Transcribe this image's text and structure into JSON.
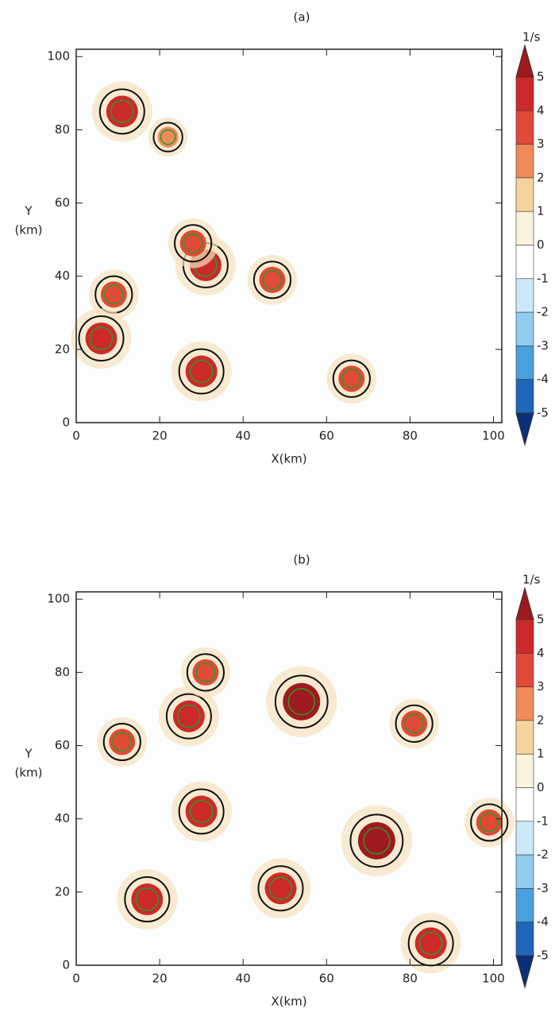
{
  "chart_data": [
    {
      "type": "heatmap",
      "title": "(a)",
      "x_label": "X(km)",
      "y_label": [
        "Y",
        "(km)"
      ],
      "xlim": [
        0,
        102
      ],
      "ylim": [
        0,
        102
      ],
      "xticks": [
        0,
        20,
        40,
        60,
        80,
        100
      ],
      "yticks": [
        0,
        20,
        40,
        60,
        80,
        100
      ],
      "colorbar": {
        "label": "1/s",
        "levels": [
          5,
          4,
          3,
          2,
          1,
          0,
          -1,
          -2,
          -3,
          -4,
          -5
        ],
        "colors": [
          "#9e1a1e",
          "#cc2a2a",
          "#e04a36",
          "#ef8a5a",
          "#f7d49e",
          "#fdf3dc",
          "#ffffff",
          "#cde8f8",
          "#92cdf0",
          "#4aa0dd",
          "#1e66b8",
          "#0b2f78"
        ]
      },
      "cores": {
        "x": [
          11,
          31,
          9,
          6,
          30,
          66,
          47,
          28,
          22
        ],
        "y": [
          85,
          43,
          35,
          23,
          14,
          12,
          39,
          49,
          78
        ],
        "values": [
          4,
          4,
          3,
          4,
          4,
          3,
          3,
          3,
          2
        ]
      }
    },
    {
      "type": "heatmap",
      "title": "(b)",
      "x_label": "X(km)",
      "y_label": [
        "Y",
        "(km)"
      ],
      "xlim": [
        0,
        102
      ],
      "ylim": [
        0,
        102
      ],
      "xticks": [
        0,
        20,
        40,
        60,
        80,
        100
      ],
      "yticks": [
        0,
        20,
        40,
        60,
        80,
        100
      ],
      "colorbar": {
        "label": "1/s",
        "levels": [
          5,
          4,
          3,
          2,
          1,
          0,
          -1,
          -2,
          -3,
          -4,
          -5
        ],
        "colors": [
          "#9e1a1e",
          "#cc2a2a",
          "#e04a36",
          "#ef8a5a",
          "#f7d49e",
          "#fdf3dc",
          "#ffffff",
          "#cde8f8",
          "#92cdf0",
          "#4aa0dd",
          "#1e66b8",
          "#0b2f78"
        ]
      },
      "cores": {
        "x": [
          27,
          30,
          17,
          49,
          85,
          99,
          81,
          31,
          11,
          54,
          72
        ],
        "y": [
          68,
          42,
          18,
          21,
          6,
          39,
          66,
          80,
          61,
          72,
          34
        ],
        "values": [
          4,
          4,
          4,
          4,
          4,
          3,
          3,
          3,
          3,
          5,
          5
        ]
      }
    }
  ]
}
